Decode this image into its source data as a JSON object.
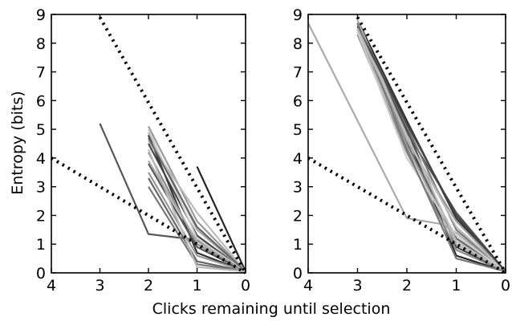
{
  "chart_data": {
    "type": "line",
    "xlabel": "Clicks remaining until selection",
    "ylabel": "Entropy (bits)",
    "panels": [
      {
        "xlim": [
          4,
          0
        ],
        "ylim": [
          0,
          9
        ],
        "xticks": [
          "4",
          "3",
          "2",
          "1",
          "0"
        ],
        "yticks": [
          "0",
          "1",
          "2",
          "3",
          "4",
          "5",
          "6",
          "7",
          "8",
          "9"
        ],
        "reference_lines": [
          {
            "style": "dotted",
            "x": [
              3.0,
              0
            ],
            "y": [
              8.9,
              0
            ]
          },
          {
            "style": "dotted",
            "x": [
              4.0,
              0
            ],
            "y": [
              4.0,
              0
            ]
          }
        ],
        "series": [
          {
            "color": "#555555",
            "x": [
              3,
              2,
              1,
              0
            ],
            "y": [
              5.2,
              1.35,
              1.15,
              0.05
            ]
          },
          {
            "color": "#222222",
            "x": [
              1,
              0
            ],
            "y": [
              3.7,
              0.05
            ]
          },
          {
            "color": "#333333",
            "x": [
              2,
              1,
              0
            ],
            "y": [
              4.8,
              0.7,
              0.05
            ]
          },
          {
            "color": "#444444",
            "x": [
              2,
              1,
              0
            ],
            "y": [
              4.5,
              1.3,
              0.05
            ]
          },
          {
            "color": "#666666",
            "x": [
              2,
              1,
              0
            ],
            "y": [
              3.3,
              0.4,
              0.05
            ]
          },
          {
            "color": "#777777",
            "x": [
              2,
              1,
              0
            ],
            "y": [
              3.0,
              0.3,
              0.05
            ]
          },
          {
            "color": "#888888",
            "x": [
              2,
              1,
              0
            ],
            "y": [
              4.2,
              1.0,
              0.05
            ]
          },
          {
            "color": "#999999",
            "x": [
              2,
              1,
              0
            ],
            "y": [
              5.1,
              1.8,
              0.05
            ]
          },
          {
            "color": "#aaaaaa",
            "x": [
              2,
              1,
              0
            ],
            "y": [
              4.9,
              1.5,
              0.05
            ]
          },
          {
            "color": "#bbbbbb",
            "x": [
              2,
              1,
              0
            ],
            "y": [
              4.6,
              2.1,
              0.05
            ]
          },
          {
            "color": "#cccccc",
            "x": [
              2,
              1,
              0
            ],
            "y": [
              5.0,
              1.2,
              0.05
            ]
          },
          {
            "color": "#555555",
            "x": [
              2,
              1,
              0
            ],
            "y": [
              3.8,
              0.9,
              0.05
            ]
          },
          {
            "color": "#999999",
            "x": [
              2,
              1,
              0
            ],
            "y": [
              3.5,
              0.6,
              0.05
            ]
          },
          {
            "color": "#bbbbbb",
            "x": [
              2,
              1,
              0
            ],
            "y": [
              4.3,
              0.2,
              0.05
            ]
          },
          {
            "color": "#666666",
            "x": [
              2,
              1,
              0
            ],
            "y": [
              4.7,
              1.6,
              0.05
            ]
          },
          {
            "color": "#aaaaaa",
            "x": [
              2,
              1,
              0
            ],
            "y": [
              3.9,
              1.1,
              0.05
            ]
          }
        ]
      },
      {
        "xlim": [
          4,
          0
        ],
        "ylim": [
          0,
          9
        ],
        "xticks": [
          "4",
          "3",
          "2",
          "1",
          "0"
        ],
        "yticks": [
          "0",
          "1",
          "2",
          "3",
          "4",
          "5",
          "6",
          "7",
          "8",
          "9"
        ],
        "reference_lines": [
          {
            "style": "dotted",
            "x": [
              3.0,
              0
            ],
            "y": [
              8.9,
              0
            ]
          },
          {
            "style": "dotted",
            "x": [
              4.0,
              0
            ],
            "y": [
              4.0,
              0
            ]
          }
        ],
        "series": [
          {
            "color": "#aaaaaa",
            "x": [
              4,
              2,
              1.3,
              1,
              0
            ],
            "y": [
              8.7,
              1.9,
              1.7,
              1.4,
              0.05
            ]
          },
          {
            "color": "#222222",
            "x": [
              3,
              2,
              1,
              0
            ],
            "y": [
              8.7,
              4.8,
              0.6,
              0.05
            ]
          },
          {
            "color": "#333333",
            "x": [
              3,
              2,
              1,
              0
            ],
            "y": [
              8.8,
              5.3,
              1.9,
              0.05
            ]
          },
          {
            "color": "#444444",
            "x": [
              3,
              2,
              1,
              0
            ],
            "y": [
              8.5,
              5.0,
              0.9,
              0.05
            ]
          },
          {
            "color": "#555555",
            "x": [
              3,
              2,
              1,
              0
            ],
            "y": [
              8.6,
              4.9,
              2.1,
              0.05
            ]
          },
          {
            "color": "#666666",
            "x": [
              3,
              2,
              1,
              0
            ],
            "y": [
              8.4,
              4.5,
              1.2,
              0.05
            ]
          },
          {
            "color": "#777777",
            "x": [
              3,
              2,
              1,
              0
            ],
            "y": [
              8.7,
              5.1,
              1.5,
              0.05
            ]
          },
          {
            "color": "#888888",
            "x": [
              3,
              2,
              1,
              0
            ],
            "y": [
              8.3,
              4.2,
              0.8,
              0.05
            ]
          },
          {
            "color": "#999999",
            "x": [
              3,
              2,
              1,
              0
            ],
            "y": [
              8.6,
              4.6,
              1.8,
              0.05
            ]
          },
          {
            "color": "#aaaaaa",
            "x": [
              3,
              2,
              1,
              0
            ],
            "y": [
              8.5,
              4.4,
              1.0,
              0.05
            ]
          },
          {
            "color": "#bbbbbb",
            "x": [
              3,
              2,
              1,
              0
            ],
            "y": [
              8.8,
              4.7,
              1.6,
              0.05
            ]
          },
          {
            "color": "#cccccc",
            "x": [
              3,
              2,
              1,
              0
            ],
            "y": [
              8.4,
              4.0,
              1.3,
              0.05
            ]
          },
          {
            "color": "#444444",
            "x": [
              3,
              2,
              1,
              0
            ],
            "y": [
              8.6,
              5.2,
              2.0,
              0.05
            ]
          },
          {
            "color": "#777777",
            "x": [
              3,
              2,
              1,
              0
            ],
            "y": [
              8.7,
              4.3,
              0.5,
              0.05
            ]
          },
          {
            "color": "#bbbbbb",
            "x": [
              3,
              2,
              1,
              0
            ],
            "y": [
              8.5,
              4.8,
              1.1,
              0.05
            ]
          }
        ]
      }
    ]
  }
}
